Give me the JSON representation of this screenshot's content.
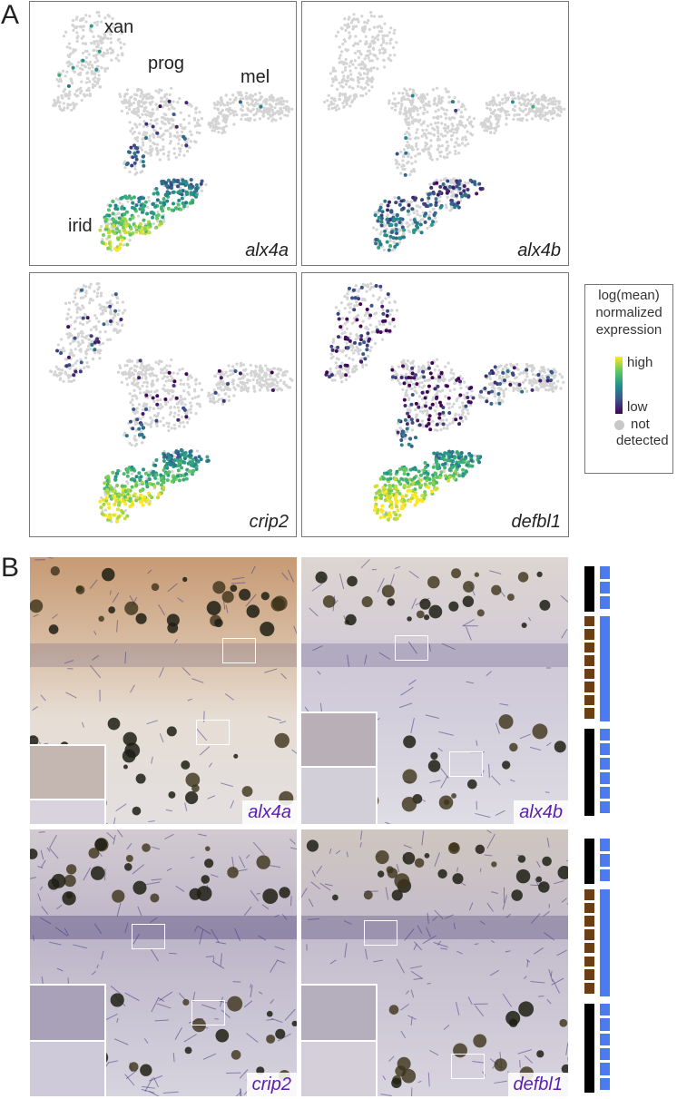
{
  "panels": {
    "a": {
      "letter": "A"
    },
    "b": {
      "letter": "B"
    }
  },
  "umap_clusters": {
    "xan": "xan",
    "prog": "prog",
    "mel": "mel",
    "irid": "irid"
  },
  "umap_genes": [
    "alx4a",
    "alx4b",
    "crip2",
    "defbl1"
  ],
  "legend": {
    "title_line1": "log(mean)",
    "title_line2": "normalized",
    "title_line3": "expression",
    "high": "high",
    "low": "low",
    "nd_line1": "not",
    "nd_line2": "detected",
    "colors": {
      "high": "#fde725",
      "mid": "#21918c",
      "low": "#440154",
      "not_detected": "#c8c8c8"
    }
  },
  "ish_genes": [
    "alx4a",
    "alx4b",
    "crip2",
    "defbl1"
  ],
  "label_color": "#5b1fb0",
  "stripe_colors": {
    "melanophore": "#000000",
    "xanthophore": "#6b3e13",
    "iridophore": "#4a7cf0"
  }
}
